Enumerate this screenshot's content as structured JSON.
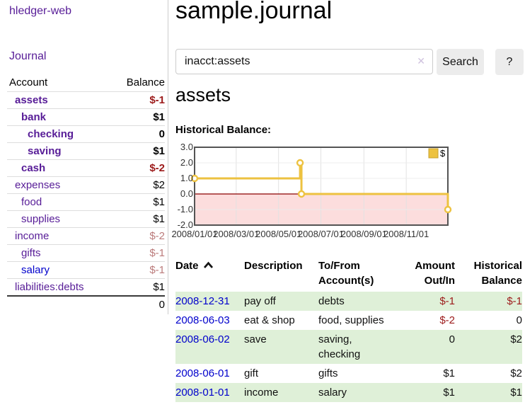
{
  "app": {
    "brand": "hledger-web",
    "nav_journal": "Journal"
  },
  "colors": {
    "purple": "#571c97",
    "blue": "#0000cc",
    "negative": "#9c1a1a",
    "negative_faded": "#bb7b7b",
    "row_green": "#dff0d8"
  },
  "sidebar": {
    "accounts_header": {
      "account": "Account",
      "balance": "Balance"
    },
    "accounts": [
      {
        "name": "assets",
        "balance": "$-1",
        "level": 1,
        "bold": true,
        "balance_class": "neg"
      },
      {
        "name": "bank",
        "balance": "$1",
        "level": 2,
        "bold": true,
        "balance_class": ""
      },
      {
        "name": "checking",
        "balance": "0",
        "level": 3,
        "bold": true,
        "balance_class": ""
      },
      {
        "name": "saving",
        "balance": "$1",
        "level": 3,
        "bold": true,
        "balance_class": ""
      },
      {
        "name": "cash",
        "balance": "$-2",
        "level": 2,
        "bold": true,
        "balance_class": "neg"
      },
      {
        "name": "expenses",
        "balance": "$2",
        "level": 1,
        "bold": false,
        "balance_class": ""
      },
      {
        "name": "food",
        "balance": "$1",
        "level": 2,
        "bold": false,
        "balance_class": ""
      },
      {
        "name": "supplies",
        "balance": "$1",
        "level": 2,
        "bold": false,
        "balance_class": ""
      },
      {
        "name": "income",
        "balance": "$-2",
        "level": 1,
        "bold": false,
        "balance_class": "neg-faded"
      },
      {
        "name": "gifts",
        "balance": "$-1",
        "level": 2,
        "bold": false,
        "balance_class": "neg-faded"
      },
      {
        "name": "salary",
        "balance": "$-1",
        "level": 2,
        "bold": false,
        "balance_class": "neg-faded",
        "blue": true
      },
      {
        "name": "liabilities:debts",
        "balance": "$1",
        "level": 1,
        "bold": false,
        "balance_class": ""
      }
    ],
    "total": "0"
  },
  "header": {
    "title": "sample.journal"
  },
  "search": {
    "value": "inacct:assets",
    "clear_icon": "✕",
    "button": "Search",
    "help": "?"
  },
  "account_page": {
    "title": "assets",
    "chart_label": "Historical Balance:"
  },
  "chart_data": {
    "type": "line",
    "title": "Historical Balance",
    "legend": {
      "label": "$",
      "position": "top-right"
    },
    "series": [
      {
        "name": "$",
        "step": true,
        "color": "#edc240",
        "points": [
          [
            "2008-01-01",
            1
          ],
          [
            "2008-06-01",
            2
          ],
          [
            "2008-06-03",
            0
          ],
          [
            "2008-12-31",
            -1
          ]
        ]
      }
    ],
    "ylim": [
      -2,
      3
    ],
    "yticks": [
      "3.0",
      "2.0",
      "1.0",
      "0.0",
      "-1.0",
      "-2.0"
    ],
    "xticks": [
      "2008/01/01",
      "2008/03/01",
      "2008/05/01",
      "2008/07/01",
      "2008/09/01",
      "2008/11/01"
    ],
    "xrange": [
      "2008-01-01",
      "2008-12-31"
    ],
    "grid": true,
    "colors": {
      "negative_region": "#fcdddd",
      "zero_line": "#8b0000",
      "grid_v": "#e2e2e2",
      "grid_h": "#ececec",
      "border": "#545454",
      "legend_box_fill": "#edc240",
      "legend_box_stroke": "#c7a12e",
      "marker_fill": "#ffffff"
    }
  },
  "register": {
    "headers": [
      "Date",
      "Description",
      "To/From Account(s)",
      "Amount Out/In",
      "Historical Balance"
    ],
    "rows": [
      {
        "date": "2008-12-31",
        "description": "pay off",
        "accounts": "debts",
        "amount": "$-1",
        "balance": "$-1",
        "amount_negative": true,
        "balance_negative": true
      },
      {
        "date": "2008-06-03",
        "description": "eat & shop",
        "accounts": "food, supplies",
        "amount": "$-2",
        "balance": "0",
        "amount_negative": true,
        "balance_negative": false
      },
      {
        "date": "2008-06-02",
        "description": "save",
        "accounts": "saving, checking",
        "amount": "0",
        "balance": "$2",
        "amount_negative": false,
        "balance_negative": false
      },
      {
        "date": "2008-06-01",
        "description": "gift",
        "accounts": "gifts",
        "amount": "$1",
        "balance": "$2",
        "amount_negative": false,
        "balance_negative": false
      },
      {
        "date": "2008-01-01",
        "description": "income",
        "accounts": "salary",
        "amount": "$1",
        "balance": "$1",
        "amount_negative": false,
        "balance_negative": false
      }
    ]
  }
}
